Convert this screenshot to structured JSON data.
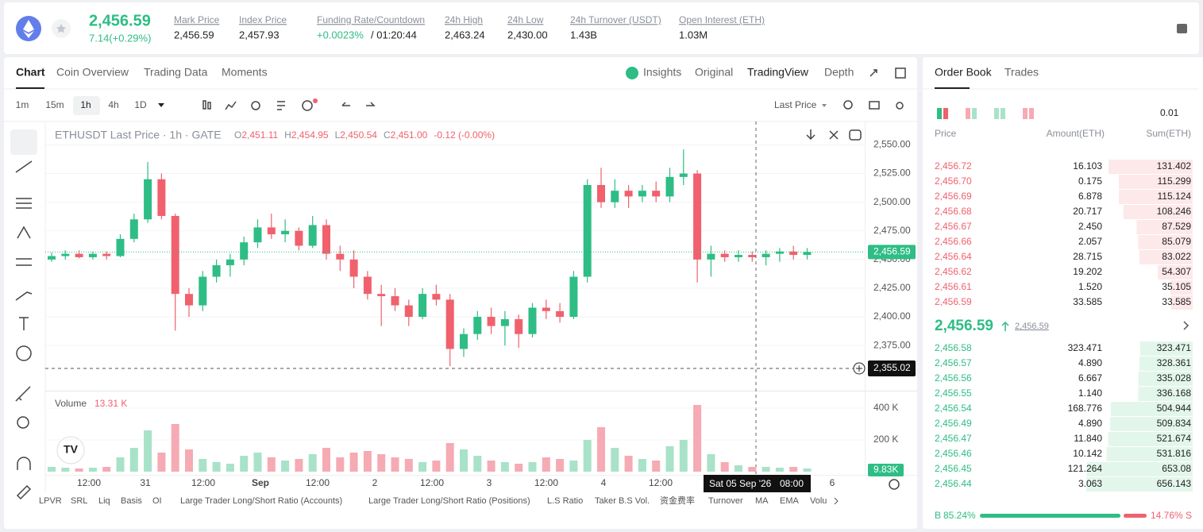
{
  "header": {
    "price": "2,456.59",
    "change": "7.14(+0.29%)",
    "stats": [
      {
        "label": "Mark Price",
        "value": "2,456.59"
      },
      {
        "label": "Index Price",
        "value": "2,457.93"
      },
      {
        "label": "Funding Rate/Countdown",
        "value": "+0.0023%",
        "extra": "/ 01:20:44"
      },
      {
        "label": "24h High",
        "value": "2,463.24"
      },
      {
        "label": "24h Low",
        "value": "2,430.00"
      },
      {
        "label": "24h Turnover (USDT)",
        "value": "1.43B"
      },
      {
        "label": "Open Interest (ETH)",
        "value": "1.03M"
      }
    ]
  },
  "chart_tabs": [
    "Chart",
    "Coin Overview",
    "Trading Data",
    "Moments"
  ],
  "view_tabs": [
    "Insights",
    "Original",
    "TradingView",
    "Depth"
  ],
  "intervals": [
    "1m",
    "15m",
    "1h",
    "4h",
    "1D"
  ],
  "price_type": "Last Price",
  "legend": {
    "symbol": "ETHUSDT Last Price · 1h · GATE",
    "ohlc": [
      {
        "k": "O",
        "v": "2,451.11"
      },
      {
        "k": "H",
        "v": "2,454.95"
      },
      {
        "k": "L",
        "v": "2,450.54"
      },
      {
        "k": "C",
        "v": "2,451.00"
      }
    ],
    "change": "-0.12 (-0.00%)"
  },
  "chart": {
    "type": "candlestick",
    "ylim": [
      2337,
      2569
    ],
    "yticks": [
      {
        "value": 2375,
        "label": "2,375.00"
      },
      {
        "value": 2400,
        "label": "2,400.00"
      },
      {
        "value": 2425,
        "label": "2,425.00"
      },
      {
        "value": 2450,
        "label": "2,450.00"
      },
      {
        "value": 2475,
        "label": "2,475.00"
      },
      {
        "value": 2500,
        "label": "2,500.00"
      },
      {
        "value": 2525,
        "label": "2,525.00"
      },
      {
        "value": 2550,
        "label": "2,550.00"
      }
    ],
    "up_color": "#2ebd85",
    "down_color": "#f0616d",
    "candles": [
      [
        2450,
        2456,
        2448,
        2453
      ],
      [
        2453,
        2458,
        2450,
        2455
      ],
      [
        2455,
        2458,
        2451,
        2452
      ],
      [
        2452,
        2457,
        2450,
        2455
      ],
      [
        2455,
        2457,
        2450,
        2453
      ],
      [
        2453,
        2472,
        2452,
        2468
      ],
      [
        2468,
        2490,
        2465,
        2485
      ],
      [
        2485,
        2535,
        2482,
        2520
      ],
      [
        2520,
        2525,
        2485,
        2488
      ],
      [
        2488,
        2490,
        2388,
        2420
      ],
      [
        2420,
        2425,
        2400,
        2410
      ],
      [
        2410,
        2440,
        2405,
        2435
      ],
      [
        2435,
        2450,
        2430,
        2445
      ],
      [
        2445,
        2455,
        2435,
        2450
      ],
      [
        2450,
        2470,
        2445,
        2465
      ],
      [
        2465,
        2485,
        2460,
        2478
      ],
      [
        2478,
        2490,
        2468,
        2472
      ],
      [
        2472,
        2485,
        2465,
        2475
      ],
      [
        2475,
        2478,
        2458,
        2462
      ],
      [
        2462,
        2488,
        2460,
        2480
      ],
      [
        2480,
        2485,
        2450,
        2455
      ],
      [
        2455,
        2462,
        2440,
        2450
      ],
      [
        2450,
        2458,
        2425,
        2435
      ],
      [
        2435,
        2440,
        2415,
        2420
      ],
      [
        2420,
        2428,
        2392,
        2418
      ],
      [
        2418,
        2425,
        2405,
        2410
      ],
      [
        2410,
        2415,
        2392,
        2400
      ],
      [
        2400,
        2425,
        2398,
        2420
      ],
      [
        2420,
        2428,
        2410,
        2415
      ],
      [
        2415,
        2420,
        2357,
        2372
      ],
      [
        2372,
        2390,
        2365,
        2385
      ],
      [
        2385,
        2405,
        2380,
        2400
      ],
      [
        2400,
        2408,
        2385,
        2392
      ],
      [
        2392,
        2405,
        2375,
        2398
      ],
      [
        2398,
        2402,
        2373,
        2385
      ],
      [
        2385,
        2412,
        2382,
        2408
      ],
      [
        2408,
        2415,
        2398,
        2405
      ],
      [
        2405,
        2412,
        2395,
        2400
      ],
      [
        2400,
        2440,
        2398,
        2435
      ],
      [
        2435,
        2520,
        2430,
        2515
      ],
      [
        2515,
        2530,
        2495,
        2500
      ],
      [
        2500,
        2520,
        2495,
        2510
      ],
      [
        2510,
        2515,
        2495,
        2505
      ],
      [
        2505,
        2515,
        2500,
        2510
      ],
      [
        2510,
        2518,
        2500,
        2505
      ],
      [
        2505,
        2530,
        2500,
        2522
      ],
      [
        2522,
        2546,
        2515,
        2525
      ],
      [
        2525,
        2528,
        2430,
        2450
      ],
      [
        2450,
        2462,
        2435,
        2455
      ],
      [
        2455,
        2458,
        2448,
        2452
      ],
      [
        2452,
        2458,
        2448,
        2454
      ],
      [
        2454,
        2457,
        2448,
        2452
      ],
      [
        2452,
        2458,
        2445,
        2455
      ],
      [
        2455,
        2460,
        2448,
        2457
      ],
      [
        2457,
        2462,
        2450,
        2454
      ],
      [
        2454,
        2460,
        2450,
        2456.59
      ]
    ],
    "volumes": [
      30,
      25,
      20,
      25,
      30,
      90,
      150,
      260,
      120,
      300,
      140,
      80,
      60,
      50,
      100,
      120,
      90,
      70,
      80,
      110,
      150,
      90,
      120,
      130,
      110,
      90,
      80,
      60,
      70,
      180,
      140,
      100,
      70,
      60,
      50,
      60,
      90,
      80,
      70,
      200,
      280,
      150,
      100,
      80,
      70,
      160,
      200,
      420,
      110,
      60,
      40,
      30,
      30,
      25,
      30,
      20
    ],
    "volume_ylim": [
      0,
      495
    ],
    "volume_yticks": [
      {
        "value": 200,
        "label": "200 K"
      },
      {
        "value": 400,
        "label": "400 K"
      }
    ],
    "volume_label": "Volume",
    "volume_value": "13.31 K",
    "xlabels": [
      "12:00",
      "31",
      "12:00",
      "Sep",
      "12:00",
      "2",
      "12:00",
      "3",
      "12:00",
      "4",
      "12:00",
      "6"
    ],
    "last_price": {
      "value": 2456.59,
      "label": "2,456.59"
    },
    "crosshair_price": {
      "value": 2355.02,
      "label": "2,355.02"
    },
    "crosshair_time": [
      "Sat 05 Sep '26",
      "08:00"
    ],
    "last_volume": {
      "value": 9.83,
      "label": "9.83K"
    }
  },
  "indicators": [
    "LPVR",
    "SRL",
    "Liq",
    "Basis",
    "OI",
    "Large Trader Long/Short Ratio (Accounts)",
    "Large Trader Long/Short Ratio (Positions)",
    "L.S Ratio",
    "Taker B.S Vol.",
    "资金费率",
    "Turnover",
    "MA",
    "EMA",
    "Volu"
  ],
  "order_book": {
    "tabs": [
      "Order Book",
      "Trades"
    ],
    "precision": "0.01",
    "columns": [
      "Price",
      "Amount(ETH)",
      "Sum(ETH)"
    ],
    "asks": [
      [
        "2,456.72",
        "16.103",
        131.402
      ],
      [
        "2,456.70",
        "0.175",
        115.299
      ],
      [
        "2,456.69",
        "6.878",
        115.124
      ],
      [
        "2,456.68",
        "20.717",
        108.246
      ],
      [
        "2,456.67",
        "2.450",
        87.529
      ],
      [
        "2,456.66",
        "2.057",
        85.079
      ],
      [
        "2,456.64",
        "28.715",
        83.022
      ],
      [
        "2,456.62",
        "19.202",
        54.307
      ],
      [
        "2,456.61",
        "1.520",
        35.105
      ],
      [
        "2,456.59",
        "33.585",
        33.585
      ]
    ],
    "mid": "2,456.59",
    "mid_mark": "2,456.59",
    "bids": [
      [
        "2,456.58",
        "323.471",
        323.471
      ],
      [
        "2,456.57",
        "4.890",
        328.361
      ],
      [
        "2,456.56",
        "6.667",
        335.028
      ],
      [
        "2,456.55",
        "1.140",
        336.168
      ],
      [
        "2,456.54",
        "168.776",
        504.944
      ],
      [
        "2,456.49",
        "4.890",
        509.834
      ],
      [
        "2,456.47",
        "11.840",
        521.674
      ],
      [
        "2,456.46",
        "10.142",
        531.816
      ],
      [
        "2,456.45",
        "121.264",
        653.08
      ],
      [
        "2,456.44",
        "3.063",
        656.143
      ]
    ],
    "buy": {
      "label": "B",
      "value": 85.24,
      "text": "85.24%"
    },
    "sell": {
      "label": "S",
      "value": 14.76,
      "text": "14.76%"
    }
  }
}
